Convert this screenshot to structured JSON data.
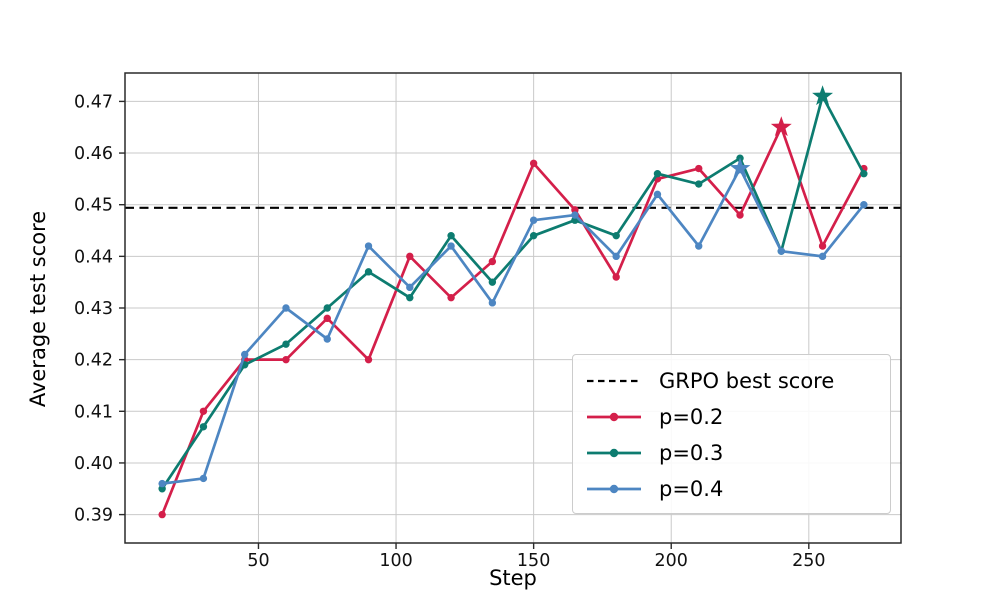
{
  "figure": {
    "xlabel": "Step",
    "ylabel": "Average test score"
  },
  "legend": {
    "position": "lower right",
    "items": [
      {
        "label": "GRPO best score",
        "sample": "dashed-line",
        "color": "#000000"
      },
      {
        "label": "p=0.2",
        "sample": "line-dot",
        "color": "#d41f4a"
      },
      {
        "label": "p=0.3",
        "sample": "line-dot",
        "color": "#0d7c70"
      },
      {
        "label": "p=0.4",
        "sample": "line-dot",
        "color": "#4d86c2"
      }
    ]
  },
  "chart_data": {
    "type": "line",
    "title": "",
    "xlabel": "Step",
    "ylabel": "Average test score",
    "xlim": [
      1.5,
      283.5
    ],
    "ylim": [
      0.3845,
      0.4755
    ],
    "x_ticks": [
      50,
      100,
      150,
      200,
      250
    ],
    "y_ticks": [
      0.39,
      0.4,
      0.41,
      0.42,
      0.43,
      0.44,
      0.45,
      0.46,
      0.47
    ],
    "grid": true,
    "grid_color": "#c9c9c9",
    "spine_color": "#2a2a2a",
    "hline": {
      "value": 0.4494,
      "label": "GRPO best score",
      "color": "#000000",
      "style": "dashed"
    },
    "x": [
      15,
      30,
      45,
      60,
      75,
      90,
      105,
      120,
      135,
      150,
      165,
      180,
      195,
      210,
      225,
      240,
      255,
      270
    ],
    "series": [
      {
        "name": "p=0.2",
        "color": "#d41f4a",
        "star_at": 240,
        "values": [
          0.39,
          0.41,
          0.42,
          0.42,
          0.428,
          0.42,
          0.44,
          0.432,
          0.439,
          0.458,
          0.449,
          0.436,
          0.455,
          0.457,
          0.448,
          0.465,
          0.442,
          0.457
        ]
      },
      {
        "name": "p=0.3",
        "color": "#0d7c70",
        "star_at": 255,
        "values": [
          0.395,
          0.407,
          0.419,
          0.423,
          0.43,
          0.437,
          0.432,
          0.444,
          0.435,
          0.444,
          0.447,
          0.444,
          0.456,
          0.454,
          0.459,
          0.441,
          0.471,
          0.456
        ]
      },
      {
        "name": "p=0.4",
        "color": "#4d86c2",
        "star_at": 225,
        "values": [
          0.396,
          0.397,
          0.421,
          0.43,
          0.424,
          0.442,
          0.434,
          0.442,
          0.431,
          0.447,
          0.448,
          0.44,
          0.452,
          0.442,
          0.457,
          0.441,
          0.44,
          0.45
        ]
      }
    ]
  }
}
